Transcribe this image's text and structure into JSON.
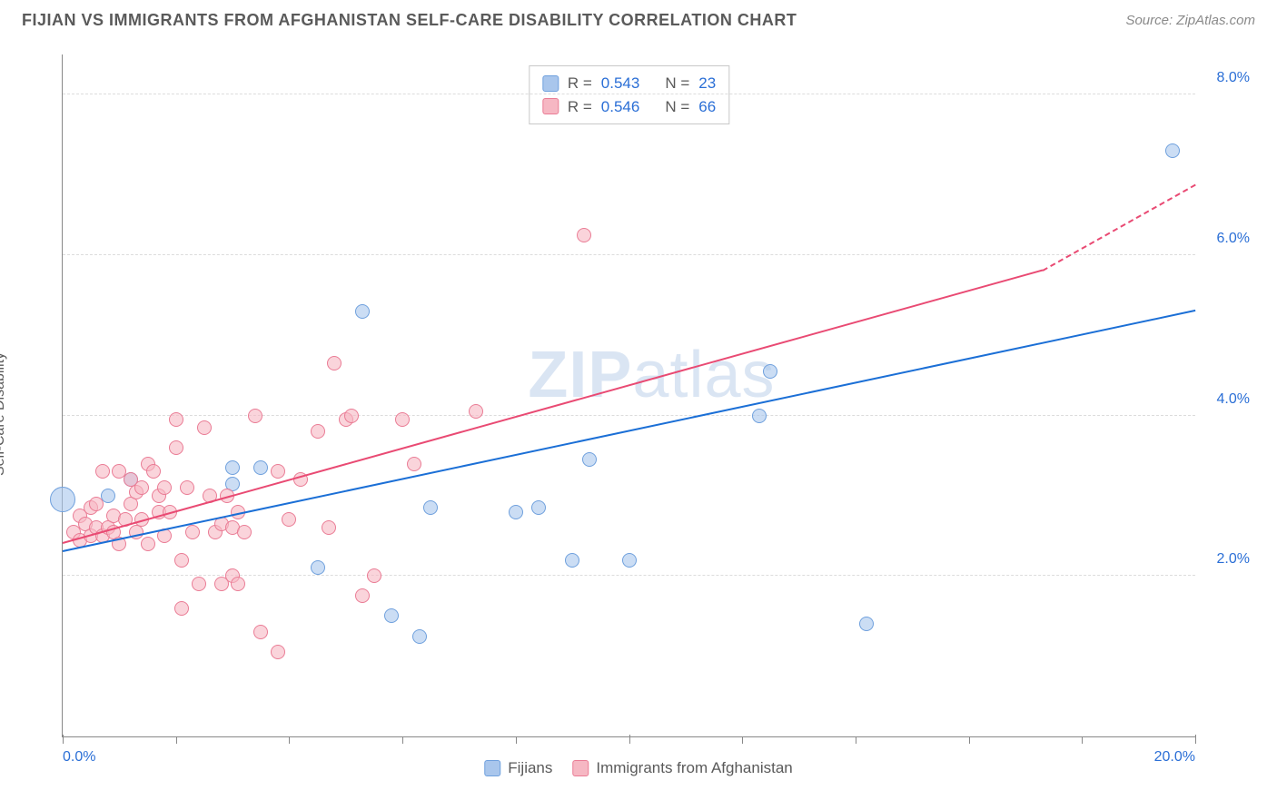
{
  "header": {
    "title": "FIJIAN VS IMMIGRANTS FROM AFGHANISTAN SELF-CARE DISABILITY CORRELATION CHART",
    "source": "Source: ZipAtlas.com"
  },
  "chart": {
    "type": "scatter",
    "y_axis_label": "Self-Care Disability",
    "watermark": "ZIPatlas",
    "background_color": "#ffffff",
    "grid_color": "#dcdcdc",
    "axis_color": "#888888",
    "label_color": "#5a5a5a",
    "tick_label_color": "#2b6fd6",
    "xlim": [
      0,
      20
    ],
    "ylim": [
      0,
      8.5
    ],
    "x_ticks_major": [
      0,
      10,
      20
    ],
    "x_ticks_minor": [
      2,
      4,
      6,
      8,
      12,
      14,
      16,
      18
    ],
    "x_tick_labels": {
      "0": "0.0%",
      "20": "20.0%"
    },
    "y_gridlines": [
      2,
      4,
      6,
      8
    ],
    "y_tick_labels": {
      "2": "2.0%",
      "4": "4.0%",
      "6": "6.0%",
      "8": "8.0%"
    },
    "legend_top": {
      "rows": [
        {
          "swatch_fill": "#a9c6ec",
          "swatch_border": "#6fa0dd",
          "r_label": "R =",
          "r_value": "0.543",
          "n_label": "N =",
          "n_value": "23"
        },
        {
          "swatch_fill": "#f6b7c3",
          "swatch_border": "#ea7c95",
          "r_label": "R =",
          "r_value": "0.546",
          "n_label": "N =",
          "n_value": "66"
        }
      ]
    },
    "legend_bottom": [
      {
        "swatch_fill": "#a9c6ec",
        "swatch_border": "#6fa0dd",
        "label": "Fijians"
      },
      {
        "swatch_fill": "#f6b7c3",
        "swatch_border": "#ea7c95",
        "label": "Immigrants from Afghanistan"
      }
    ],
    "series": [
      {
        "name": "Fijians",
        "point_fill": "rgba(169,198,236,0.6)",
        "point_border": "#6fa0dd",
        "point_radius": 8,
        "trend_color": "#1b6fd6",
        "trend_start": [
          0,
          2.3
        ],
        "trend_end": [
          20,
          5.3
        ],
        "trend_dash_from": 20,
        "data": [
          [
            0.0,
            2.95,
            14
          ],
          [
            0.8,
            3.0,
            8
          ],
          [
            1.2,
            3.2,
            8
          ],
          [
            3.0,
            3.35,
            8
          ],
          [
            3.0,
            3.15,
            8
          ],
          [
            3.5,
            3.35,
            8
          ],
          [
            4.5,
            2.1,
            8
          ],
          [
            5.3,
            5.3,
            8
          ],
          [
            5.8,
            1.5,
            8
          ],
          [
            6.3,
            1.25,
            8
          ],
          [
            6.5,
            2.85,
            8
          ],
          [
            8.0,
            2.8,
            8
          ],
          [
            8.4,
            2.85,
            8
          ],
          [
            9.0,
            2.2,
            8
          ],
          [
            9.3,
            3.45,
            8
          ],
          [
            10.0,
            2.2,
            8
          ],
          [
            12.3,
            4.0,
            8
          ],
          [
            12.5,
            4.55,
            8
          ],
          [
            14.2,
            1.4,
            8
          ],
          [
            19.6,
            7.3,
            8
          ]
        ]
      },
      {
        "name": "Immigrants from Afghanistan",
        "point_fill": "rgba(246,183,195,0.6)",
        "point_border": "#ea7c95",
        "point_radius": 8,
        "trend_color": "#e94a73",
        "trend_start": [
          0,
          2.4
        ],
        "trend_end": [
          17.3,
          5.8
        ],
        "trend_dash_from": 17.3,
        "trend_dash_end": [
          20,
          6.87
        ],
        "data": [
          [
            0.2,
            2.55
          ],
          [
            0.3,
            2.75
          ],
          [
            0.3,
            2.45
          ],
          [
            0.4,
            2.65
          ],
          [
            0.5,
            2.5
          ],
          [
            0.5,
            2.85
          ],
          [
            0.6,
            2.6
          ],
          [
            0.6,
            2.9
          ],
          [
            0.7,
            3.3
          ],
          [
            0.7,
            2.5
          ],
          [
            0.8,
            2.6
          ],
          [
            0.9,
            2.55
          ],
          [
            0.9,
            2.75
          ],
          [
            1.0,
            3.3
          ],
          [
            1.0,
            2.4
          ],
          [
            1.1,
            2.7
          ],
          [
            1.2,
            2.9
          ],
          [
            1.2,
            3.2
          ],
          [
            1.3,
            2.55
          ],
          [
            1.3,
            3.05
          ],
          [
            1.4,
            2.7
          ],
          [
            1.4,
            3.1
          ],
          [
            1.5,
            2.4
          ],
          [
            1.5,
            3.4
          ],
          [
            1.6,
            3.3
          ],
          [
            1.7,
            2.8
          ],
          [
            1.7,
            3.0
          ],
          [
            1.8,
            2.5
          ],
          [
            1.8,
            3.1
          ],
          [
            1.9,
            2.8
          ],
          [
            2.0,
            3.6
          ],
          [
            2.0,
            3.95
          ],
          [
            2.1,
            2.2
          ],
          [
            2.1,
            1.6
          ],
          [
            2.2,
            3.1
          ],
          [
            2.3,
            2.55
          ],
          [
            2.4,
            1.9
          ],
          [
            2.5,
            3.85
          ],
          [
            2.6,
            3.0
          ],
          [
            2.7,
            2.55
          ],
          [
            2.8,
            2.65
          ],
          [
            2.8,
            1.9
          ],
          [
            2.9,
            3.0
          ],
          [
            3.0,
            2.0
          ],
          [
            3.0,
            2.6
          ],
          [
            3.1,
            2.8
          ],
          [
            3.1,
            1.9
          ],
          [
            3.2,
            2.55
          ],
          [
            3.4,
            4.0
          ],
          [
            3.5,
            1.3
          ],
          [
            3.8,
            3.3
          ],
          [
            3.8,
            1.05
          ],
          [
            4.0,
            2.7
          ],
          [
            4.2,
            3.2
          ],
          [
            4.5,
            3.8
          ],
          [
            4.7,
            2.6
          ],
          [
            4.8,
            4.65
          ],
          [
            5.0,
            3.95
          ],
          [
            5.1,
            4.0
          ],
          [
            5.3,
            1.75
          ],
          [
            5.5,
            2.0
          ],
          [
            6.0,
            3.95
          ],
          [
            6.2,
            3.4
          ],
          [
            7.3,
            4.05
          ],
          [
            9.2,
            6.25
          ]
        ]
      }
    ]
  }
}
